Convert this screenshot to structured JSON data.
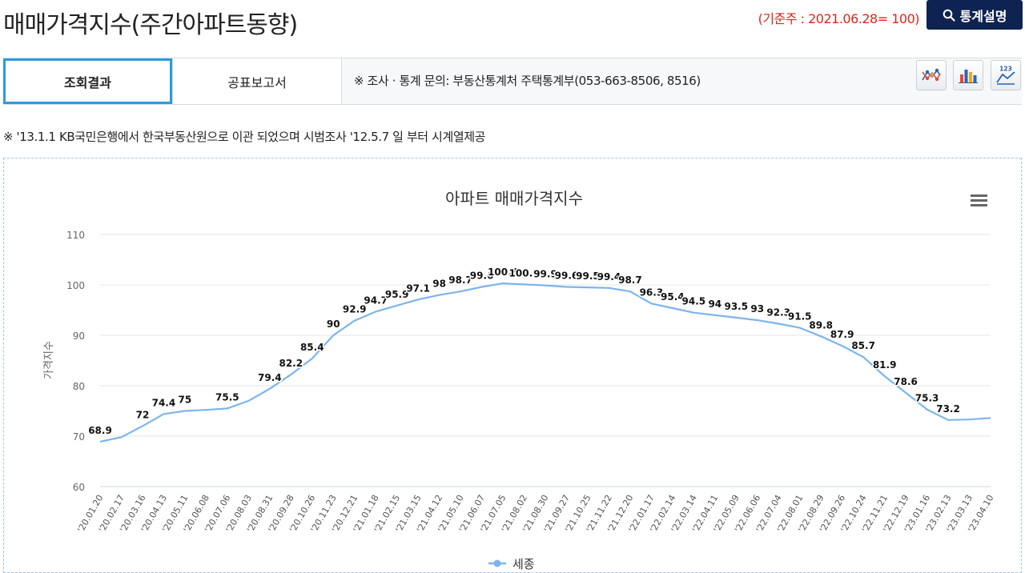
{
  "header": {
    "title": "매매가격지수(주간아파트동향)",
    "base_week": "(기준주 : 2021.06.28= 100)",
    "stat_button_label": "통계설명",
    "stat_button_icon": "search-icon"
  },
  "tabs": [
    {
      "label": "조회결과",
      "active": true
    },
    {
      "label": "공표보고서",
      "active": false
    }
  ],
  "inquiry_text": "※ 조사 · 통계 문의: 부동산통계처 주택통계부(053-663-8506, 8516)",
  "view_buttons": [
    {
      "icon": "scatter-chart-icon"
    },
    {
      "icon": "bar-chart-icon"
    },
    {
      "icon": "number-chart-icon"
    }
  ],
  "note": "※ '13.1.1 KB국민은행에서 한국부동산원으로 이관 되었으며 시범조사 '12.5.7 일 부터 시계열제공",
  "chart_data": {
    "type": "line",
    "title": "아파트 매매가격지수",
    "ylabel": "가격지수",
    "xlabel": "",
    "ylim": [
      60,
      110
    ],
    "yticks": [
      60,
      70,
      80,
      90,
      100,
      110
    ],
    "grid": true,
    "legend_position": "bottom",
    "line_color": "#7cb5ec",
    "x": [
      "'20.01.20",
      "'20.02.17",
      "'20.03.16",
      "'20.04.13",
      "'20.05.11",
      "'20.06.08",
      "'20.07.06",
      "'20.08.03",
      "'20.08.31",
      "'20.09.28",
      "'20.10.26",
      "'20.11.23",
      "'20.12.21",
      "'21.01.18",
      "'21.02.15",
      "'21.03.15",
      "'21.04.12",
      "'21.05.10",
      "'21.06.07",
      "'21.07.05",
      "'21.08.02",
      "'21.08.30",
      "'21.09.27",
      "'21.10.25",
      "'21.11.22",
      "'21.12.20",
      "'22.01.17",
      "'22.02.14",
      "'22.03.14",
      "'22.04.11",
      "'22.05.09",
      "'22.06.06",
      "'22.07.04",
      "'22.08.01",
      "'22.08.29",
      "'22.09.26",
      "'22.10.24",
      "'22.11.21",
      "'22.12.19",
      "'23.01.16",
      "'23.02.13",
      "'23.03.13",
      "'23.04.10"
    ],
    "series": [
      {
        "name": "세종",
        "values": [
          68.9,
          69.8,
          72,
          74.4,
          75,
          75.2,
          75.5,
          77,
          79.4,
          82.2,
          85.4,
          90,
          92.9,
          94.7,
          95.9,
          97.1,
          98,
          98.7,
          99.6,
          100.3,
          100.1,
          99.9,
          99.6,
          99.5,
          99.4,
          98.7,
          96.3,
          95.4,
          94.5,
          94,
          93.5,
          93,
          92.3,
          91.5,
          89.8,
          87.9,
          85.7,
          81.9,
          78.6,
          75.3,
          73.2,
          73.3,
          73.6
        ],
        "labels": [
          "68.9",
          "",
          "72",
          "74.4",
          "75",
          "",
          "75.5",
          "",
          "79.4",
          "82.2",
          "85.4",
          "90",
          "92.9",
          "94.7",
          "95.9",
          "97.1",
          "98",
          "98.7",
          "99.6",
          "100.3",
          "100.1",
          "99.9",
          "99.6",
          "99.5",
          "99.4",
          "98.7",
          "96.3",
          "95.4",
          "94.5",
          "94",
          "93.5",
          "93",
          "92.3",
          "91.5",
          "89.8",
          "87.9",
          "85.7",
          "81.9",
          "78.6",
          "75.3",
          "73.2",
          "",
          ""
        ]
      }
    ],
    "menu_icon": "hamburger-menu-icon"
  }
}
